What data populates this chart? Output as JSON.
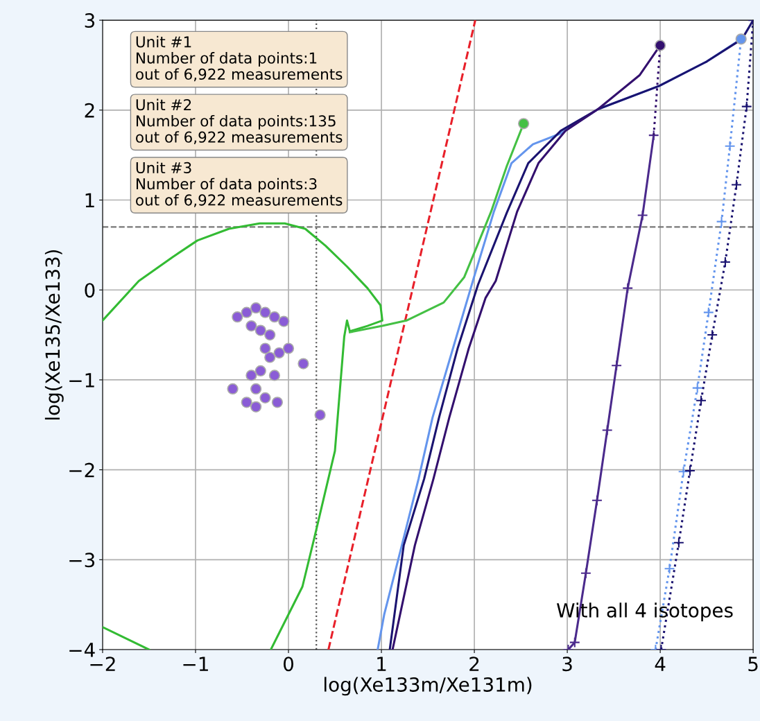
{
  "chart_data": {
    "type": "line",
    "xlabel": "log(Xe133m/Xe131m)",
    "ylabel": "log(Xe135/Xe133)",
    "xlim": [
      -2,
      5
    ],
    "ylim": [
      -4,
      3
    ],
    "xticks": [
      {
        "value": -2,
        "label": "−2"
      },
      {
        "value": -1,
        "label": "−1"
      },
      0,
      1,
      2,
      3,
      4,
      5
    ],
    "yticks": [
      {
        "value": -4,
        "label": "−4"
      },
      {
        "value": -3,
        "label": "−3"
      },
      {
        "value": -2,
        "label": "−2"
      },
      {
        "value": -1,
        "label": "−1"
      },
      0,
      1,
      2,
      3
    ],
    "grid": true,
    "legend": false,
    "ref_lines": [
      {
        "axis": "x",
        "value": 0.3,
        "color": "#555555",
        "line_style": "dotted"
      },
      {
        "axis": "y",
        "value": 0.7,
        "color": "#777777",
        "line_style": "dashed"
      }
    ],
    "series": [
      {
        "type": "line",
        "color": "#e8202a",
        "line_style": "dashed",
        "marker": "none",
        "x": [
          0.43,
          2.01
        ],
        "values": [
          -4,
          3
        ]
      },
      {
        "type": "line",
        "color": "#33bb33",
        "line_style": "solid",
        "marker": "none",
        "x": [
          -2,
          -1.61,
          -1.24,
          -0.98,
          -0.64,
          -0.31,
          -0.04,
          0.18,
          0.4,
          0.63,
          0.85,
          0.99,
          1.01,
          0.85,
          0.66,
          0.63,
          0.6,
          0.5,
          0.28,
          0.15,
          -0.19
        ],
        "values": [
          -0.34,
          0.1,
          0.37,
          0.55,
          0.68,
          0.74,
          0.74,
          0.68,
          0.49,
          0.26,
          0.02,
          -0.17,
          -0.34,
          -0.4,
          -0.46,
          -0.34,
          -0.52,
          -1.79,
          -2.75,
          -3.3,
          -4.0
        ]
      },
      {
        "color": "#33bb33",
        "line_style": "solid",
        "marker": "none",
        "x": [
          -2,
          -1.5
        ],
        "values": [
          -3.75,
          -4.0
        ]
      },
      {
        "type": "line",
        "color": "#44c044",
        "line_style": "solid",
        "marker": "none",
        "x": [
          0.66,
          1.01,
          1.27,
          1.67,
          1.89,
          2.03,
          2.18,
          2.35,
          2.53
        ],
        "values": [
          -0.47,
          -0.4,
          -0.34,
          -0.14,
          0.14,
          0.49,
          0.87,
          1.38,
          1.85
        ]
      },
      {
        "type": "line",
        "color": "#6495ed",
        "line_style": "solid",
        "marker": "none",
        "x": [
          0.96,
          1.03,
          1.22,
          1.4,
          1.55,
          1.77,
          1.99,
          2.21,
          2.4,
          2.63,
          2.93,
          3.33,
          3.99,
          4.5,
          4.87
        ],
        "values": [
          -4.0,
          -3.61,
          -2.84,
          -2.1,
          -1.42,
          -0.65,
          0.12,
          0.87,
          1.41,
          1.62,
          1.74,
          2.01,
          2.27,
          2.54,
          2.79
        ]
      },
      {
        "type": "line",
        "color": "#1a1370",
        "line_style": "solid",
        "marker": "none",
        "x": [
          1.09,
          1.24,
          1.46,
          1.62,
          1.82,
          2.04,
          2.35,
          2.58,
          2.93,
          3.33,
          3.99,
          4.5,
          4.88,
          5.0
        ],
        "values": [
          -4.0,
          -2.84,
          -2.1,
          -1.42,
          -0.65,
          0.06,
          0.86,
          1.41,
          1.77,
          2.01,
          2.27,
          2.54,
          2.79,
          3.0
        ]
      },
      {
        "type": "line",
        "color": "#33106e",
        "line_style": "solid",
        "marker": "none",
        "x": [
          1.12,
          1.36,
          1.56,
          1.73,
          1.94,
          2.12,
          2.23,
          2.46,
          2.69,
          2.98,
          3.33,
          3.78,
          4.0
        ],
        "values": [
          -4.0,
          -2.84,
          -2.1,
          -1.42,
          -0.65,
          -0.09,
          0.1,
          0.87,
          1.41,
          1.77,
          2.01,
          2.39,
          2.72
        ]
      },
      {
        "type": "line",
        "color": "#4b2a8c",
        "line_style": "solid",
        "marker": "cross",
        "x": [
          3.01,
          3.08,
          3.2,
          3.32,
          3.43,
          3.53,
          3.65,
          3.81,
          3.93
        ],
        "values": [
          -4.0,
          -3.92,
          -3.15,
          -2.34,
          -1.56,
          -0.84,
          0.02,
          0.83,
          1.72
        ]
      },
      {
        "type": "line",
        "color": "#33106e",
        "line_style": "dotted",
        "marker": "none",
        "x": [
          3.93,
          4.0
        ],
        "values": [
          1.72,
          2.72
        ]
      },
      {
        "type": "line",
        "color": "#6495ed",
        "line_style": "dotted",
        "marker": "cross",
        "x": [
          3.95,
          4.1,
          4.25,
          4.4,
          4.52,
          4.66,
          4.75,
          4.87
        ],
        "values": [
          -4.0,
          -3.1,
          -2.02,
          -1.09,
          -0.25,
          0.76,
          1.6,
          2.79
        ]
      },
      {
        "type": "line",
        "color": "#1a1370",
        "line_style": "dotted",
        "marker": "cross",
        "x": [
          4.01,
          4.2,
          4.32,
          4.44,
          4.56,
          4.7,
          4.82,
          4.93,
          5.0
        ],
        "values": [
          -4.0,
          -2.81,
          -2.01,
          -1.23,
          -0.5,
          0.31,
          1.17,
          2.04,
          3.0
        ]
      },
      {
        "type": "scatter",
        "color": "#44c044",
        "marker": "circle",
        "x": [
          2.53
        ],
        "values": [
          1.85
        ]
      },
      {
        "type": "scatter",
        "color": "#33106e",
        "marker": "circle",
        "x": [
          4.0
        ],
        "values": [
          2.72
        ]
      },
      {
        "type": "scatter",
        "color": "#6495ed",
        "marker": "circle",
        "x": [
          4.87
        ],
        "values": [
          2.79
        ]
      },
      {
        "type": "scatter",
        "color": "#8a5cd6",
        "marker": "circle",
        "x": [
          -0.55,
          -0.45,
          -0.35,
          -0.25,
          -0.15,
          -0.05,
          -0.4,
          -0.3,
          -0.2,
          -0.25,
          -0.2,
          -0.1,
          0.0,
          -0.3,
          -0.4,
          -0.6,
          -0.35,
          -0.25,
          -0.15,
          -0.45,
          -0.35,
          0.16,
          0.34,
          -0.12
        ],
        "values": [
          -0.3,
          -0.25,
          -0.2,
          -0.25,
          -0.3,
          -0.35,
          -0.4,
          -0.45,
          -0.5,
          -0.65,
          -0.75,
          -0.7,
          -0.65,
          -0.9,
          -0.95,
          -1.1,
          -1.1,
          -1.2,
          -0.95,
          -1.25,
          -1.3,
          -0.82,
          -1.39,
          -1.25
        ]
      }
    ],
    "annotations": [
      "Unit #1\nNumber of data points:1\nout of 6,922 measurements",
      "Unit #2\nNumber of data points:135\nout of 6,922 measurements",
      "Unit #3\nNumber of data points:3\nout of 6,922 measurements",
      "With all 4 isotopes"
    ]
  }
}
